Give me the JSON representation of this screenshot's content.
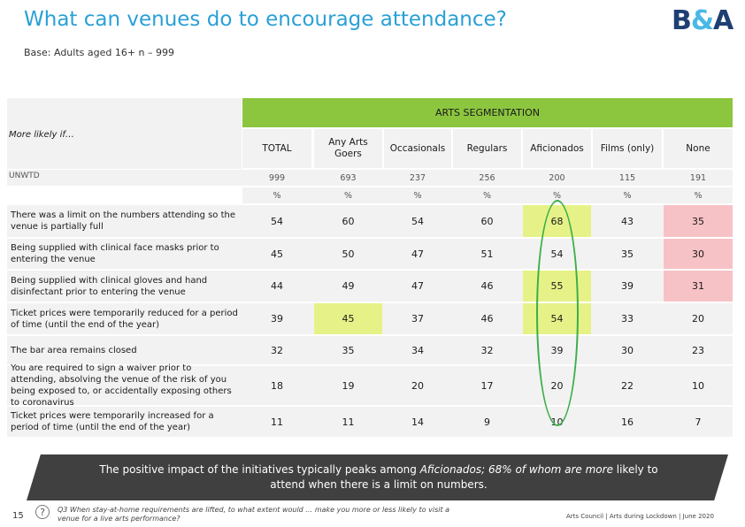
{
  "header": {
    "title": "What can venues do to encourage attendance?",
    "subtitle": "Base: Adults aged 16+ n – 999",
    "logo_left": "B",
    "logo_amp": "&",
    "logo_right": "A"
  },
  "table": {
    "segment_heading": "ARTS SEGMENTATION",
    "corner_label": "More likely if…",
    "unwtd_label": "UNWTD",
    "columns": [
      {
        "label": "TOTAL",
        "unwtd": "999",
        "unit": "%"
      },
      {
        "label": "Any Arts Goers",
        "unwtd": "693",
        "unit": "%"
      },
      {
        "label": "Occasionals",
        "unwtd": "237",
        "unit": "%"
      },
      {
        "label": "Regulars",
        "unwtd": "256",
        "unit": "%"
      },
      {
        "label": "Aficionados",
        "unwtd": "200",
        "unit": "%"
      },
      {
        "label": "Films (only)",
        "unwtd": "115",
        "unit": "%"
      },
      {
        "label": "None",
        "unwtd": "191",
        "unit": "%"
      }
    ],
    "rows": [
      {
        "label": "There was a limit on the numbers attending so the venue is partially full",
        "values": [
          "54",
          "60",
          "54",
          "60",
          "68",
          "43",
          "35"
        ]
      },
      {
        "label": "Being supplied with clinical face masks prior to entering the venue",
        "values": [
          "45",
          "50",
          "47",
          "51",
          "54",
          "35",
          "30"
        ]
      },
      {
        "label": "Being supplied with clinical gloves and hand disinfectant prior to entering the venue",
        "values": [
          "44",
          "49",
          "47",
          "46",
          "55",
          "39",
          "31"
        ]
      },
      {
        "label": "Ticket prices were temporarily reduced for a period of time (until the end of the year)",
        "values": [
          "39",
          "45",
          "37",
          "46",
          "54",
          "33",
          "20"
        ]
      },
      {
        "label": "The bar area remains closed",
        "values": [
          "32",
          "35",
          "34",
          "32",
          "39",
          "30",
          "23"
        ]
      },
      {
        "label": "You are required to sign a waiver prior to attending, absolving the venue of the risk of you being exposed to, or accidentally exposing others to coronavirus",
        "values": [
          "18",
          "19",
          "20",
          "17",
          "20",
          "22",
          "10"
        ]
      },
      {
        "label": "Ticket prices were temporarily increased for a period of time (until the end of the year)",
        "values": [
          "11",
          "11",
          "14",
          "9",
          "10",
          "16",
          "7"
        ]
      }
    ],
    "highlight_colors": {
      "high": "#e6f287",
      "low": "#f7c2c6"
    }
  },
  "banner": {
    "text_start": "The positive impact of the initiatives typically peaks among ",
    "text_em": "Aficionados; 68% of whom are more",
    "text_end": " likely to attend when there is a limit on numbers."
  },
  "footer": {
    "page_number": "15",
    "question_icon": "?",
    "question": "Q3 When stay-at-home requirements are lifted, to what extent would … make you more or less likely to visit a venue for a live arts performance?",
    "source": "Arts Council | Arts during Lockdown | June 2020"
  }
}
